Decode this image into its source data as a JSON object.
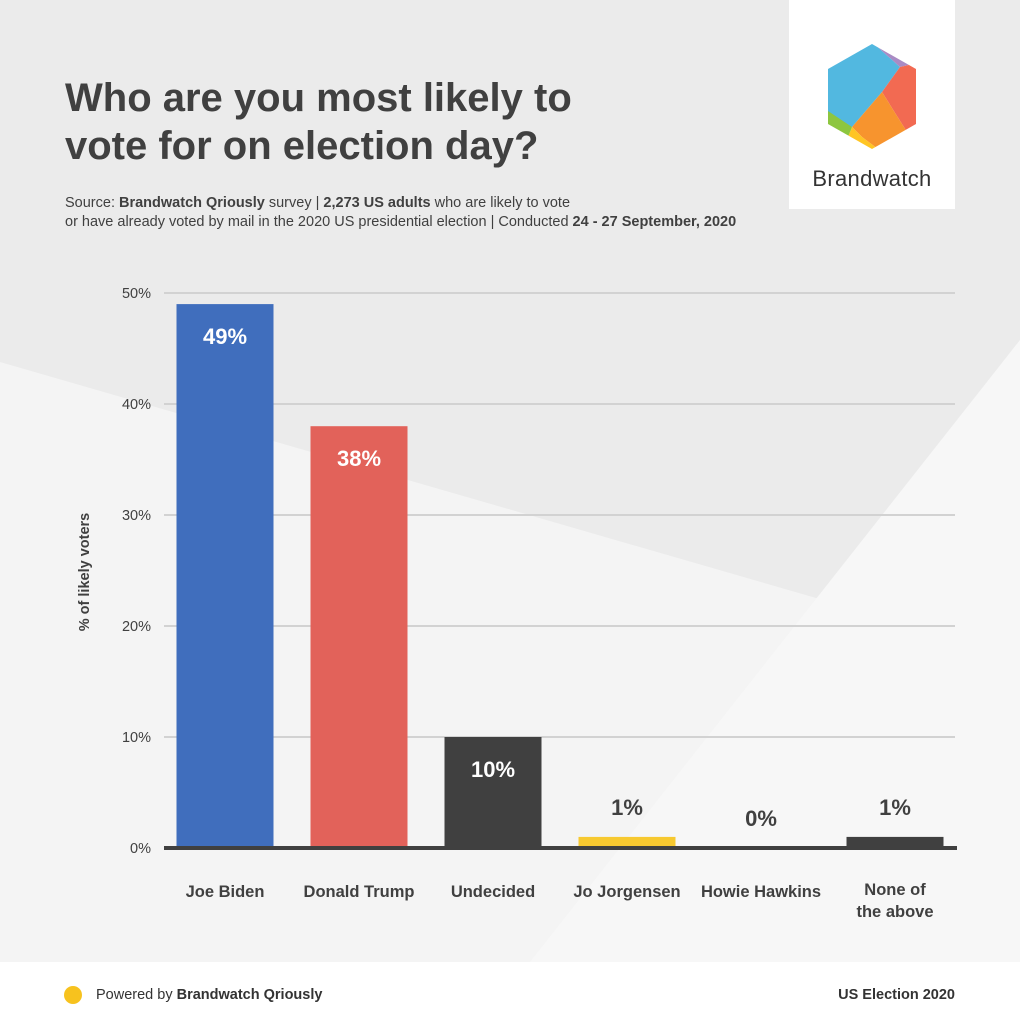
{
  "header": {
    "title_line1": "Who are you most likely to",
    "title_line2": "vote for on election day?",
    "source_prefix": "Source: ",
    "source_name": "Brandwatch Qriously",
    "source_mid": " survey | ",
    "source_sample": "2,273 US adults",
    "source_rest1": " who are likely to vote",
    "source_line2": "or have already voted by mail in the 2020 US presidential election | Conducted ",
    "source_dates": "24 - 27 September, 2020"
  },
  "logo": {
    "name": "Brandwatch"
  },
  "footer": {
    "powered_prefix": "Powered by ",
    "powered_name": "Brandwatch Qriously",
    "tag": "US Election 2020"
  },
  "colors": {
    "biden": "#406ebd",
    "trump": "#e2625a",
    "undecided": "#404040",
    "jorgensen": "#f7c930",
    "hawkins": "#404040",
    "none": "#404040"
  },
  "chart_data": {
    "type": "bar",
    "title": "Who are you most likely to vote for on election day?",
    "ylabel": "% of likely voters",
    "xlabel": "",
    "ylim": [
      0,
      50
    ],
    "yticks": [
      0,
      10,
      20,
      30,
      40,
      50
    ],
    "ytick_labels": [
      "0%",
      "10%",
      "20%",
      "30%",
      "40%",
      "50%"
    ],
    "categories": [
      "Joe Biden",
      "Donald Trump",
      "Undecided",
      "Jo Jorgensen",
      "Howie Hawkins",
      "None of the above"
    ],
    "category_lines": [
      [
        "Joe Biden"
      ],
      [
        "Donald Trump"
      ],
      [
        "Undecided"
      ],
      [
        "Jo Jorgensen"
      ],
      [
        "Howie Hawkins"
      ],
      [
        "None of",
        "the above"
      ]
    ],
    "values": [
      49,
      38,
      10,
      1,
      0,
      1
    ],
    "data_labels": [
      "49%",
      "38%",
      "10%",
      "1%",
      "0%",
      "1%"
    ],
    "colors": [
      "#406ebd",
      "#e2625a",
      "#404040",
      "#f7c930",
      "#404040",
      "#404040"
    ],
    "grid": true
  }
}
